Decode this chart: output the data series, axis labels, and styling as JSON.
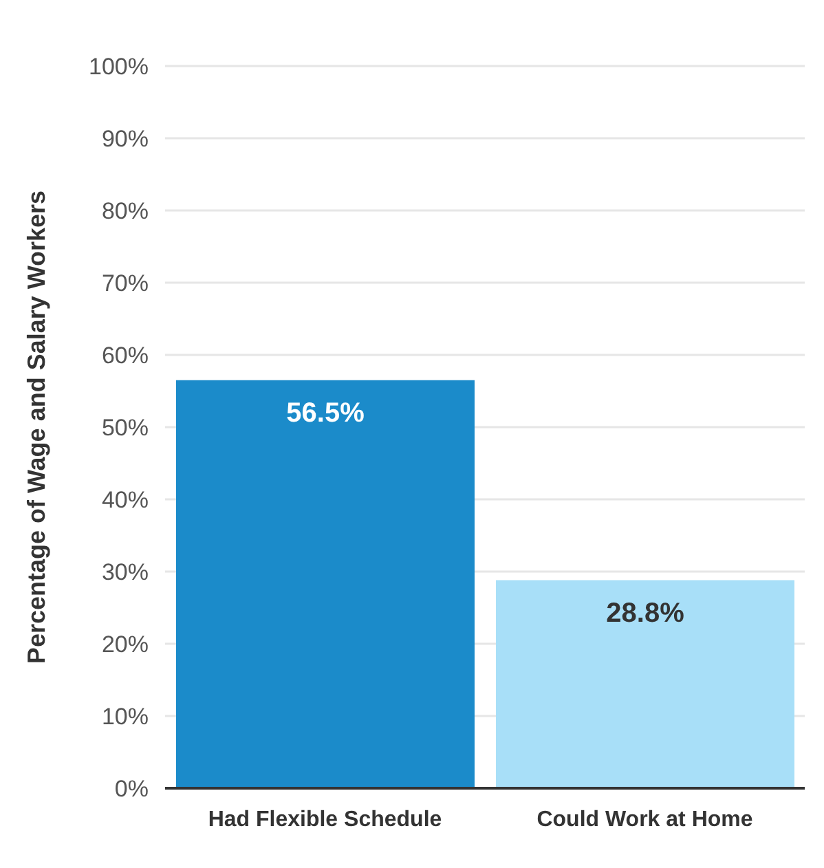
{
  "chart_data": {
    "type": "bar",
    "ylabel": "Percentage of Wage and Salary Workers",
    "categories": [
      "Had Flexible Schedule",
      "Could Work at Home"
    ],
    "values": [
      56.5,
      28.8
    ],
    "colors": [
      "#1b8bca",
      "#a8dff8"
    ],
    "ylim": [
      0,
      100
    ],
    "yticks": [
      {
        "value": 0,
        "label": "0%"
      },
      {
        "value": 10,
        "label": "10%"
      },
      {
        "value": 20,
        "label": "20%"
      },
      {
        "value": 30,
        "label": "30%"
      },
      {
        "value": 40,
        "label": "40%"
      },
      {
        "value": 50,
        "label": "50%"
      },
      {
        "value": 60,
        "label": "60%"
      },
      {
        "value": 70,
        "label": "70%"
      },
      {
        "value": 80,
        "label": "80%"
      },
      {
        "value": 90,
        "label": "90%"
      },
      {
        "value": 100,
        "label": "100%"
      }
    ],
    "grid": "y",
    "value_labels": [
      "56.5%",
      "28.8%"
    ]
  }
}
